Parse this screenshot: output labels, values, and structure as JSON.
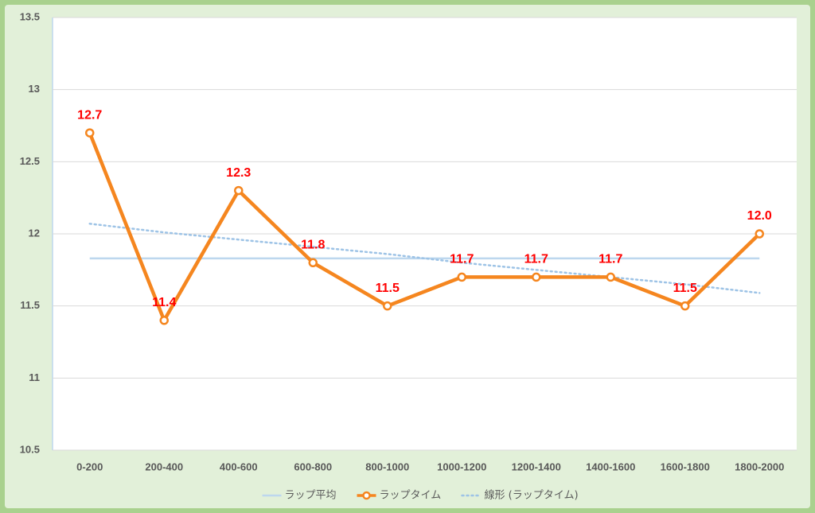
{
  "chart_data": {
    "type": "line",
    "categories": [
      "0-200",
      "200-400",
      "400-600",
      "600-800",
      "800-1000",
      "1000-1200",
      "1200-1400",
      "1400-1600",
      "1600-1800",
      "1800-2000"
    ],
    "series": [
      {
        "name": "ラップ平均",
        "color": "#bdd7ee",
        "style": "solid",
        "values": [
          11.83,
          11.83,
          11.83,
          11.83,
          11.83,
          11.83,
          11.83,
          11.83,
          11.83,
          11.83
        ]
      },
      {
        "name": "ラップタイム",
        "color": "#f5861f",
        "style": "markers",
        "label_color": "#ff0000",
        "values": [
          12.7,
          11.4,
          12.3,
          11.8,
          11.5,
          11.7,
          11.7,
          11.7,
          11.5,
          12.0
        ],
        "value_labels": [
          "12.7",
          "11.4",
          "12.3",
          "11.8",
          "11.5",
          "11.7",
          "11.7",
          "11.7",
          "11.5",
          "12.0"
        ]
      },
      {
        "name": "線形 (ラップタイム)",
        "color": "#9dc3e6",
        "style": "dotted",
        "values": [
          12.07,
          12.01,
          11.96,
          11.91,
          11.86,
          11.8,
          11.75,
          11.7,
          11.65,
          11.59
        ]
      }
    ],
    "ylim": [
      10.5,
      13.5
    ],
    "yticks": [
      10.5,
      11,
      11.5,
      12,
      12.5,
      13,
      13.5
    ],
    "grid": true,
    "legend": "bottom"
  }
}
